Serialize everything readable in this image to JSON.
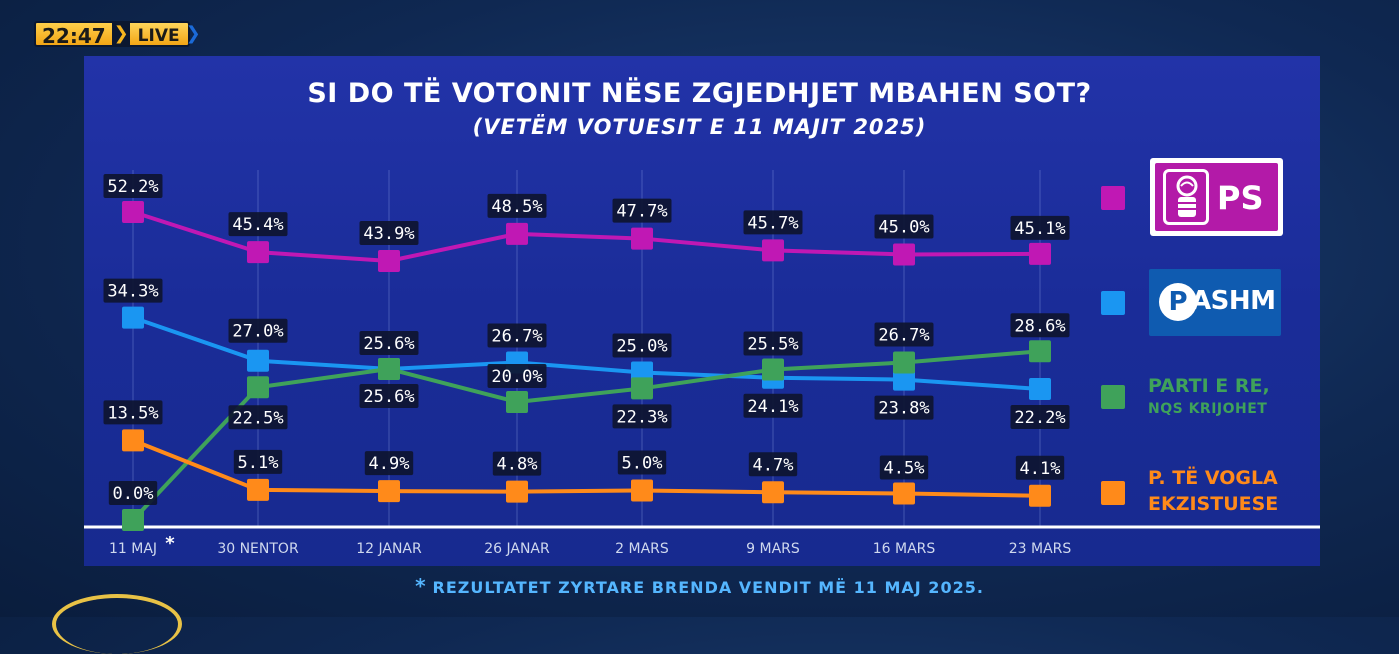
{
  "badge": {
    "time": "22:47",
    "live": "LIVE"
  },
  "header": {
    "title": "SI DO TË VOTONIT NËSE ZGJEDHJET MBAHEN SOT?",
    "subtitle": "(VETËM VOTUESIT E 11 MAJIT 2025)"
  },
  "colors": {
    "ps": "#c018b4",
    "pd": "#1a96f2",
    "new": "#3fa25a",
    "small": "#ff8a1a",
    "label_bg": "#0e1530"
  },
  "chart_data": {
    "type": "line",
    "title": "SI DO TË VOTONIT NËSE ZGJEDHJET MBAHEN SOT?",
    "subtitle": "(VETËM VOTUESIT E 11 MAJIT 2025)",
    "categories": [
      "11 MAJ",
      "30 NENTOR",
      "12 JANAR",
      "26 JANAR",
      "2 MARS",
      "9 MARS",
      "16 MARS",
      "23 MARS"
    ],
    "first_category_marker": "*",
    "ylim": [
      0,
      55
    ],
    "series": [
      {
        "key": "ps",
        "name": "PS",
        "values": [
          52.2,
          45.4,
          43.9,
          48.5,
          47.7,
          45.7,
          45.0,
          45.1
        ],
        "labels": [
          "52.2%",
          "45.4%",
          "43.9%",
          "48.5%",
          "47.7%",
          "45.7%",
          "45.0%",
          "45.1%"
        ]
      },
      {
        "key": "pd",
        "name": "PASHM",
        "values": [
          34.3,
          27.0,
          25.6,
          26.7,
          25.0,
          24.1,
          23.8,
          22.2
        ],
        "labels": [
          "34.3%",
          "27.0%",
          "25.6%",
          "26.7%",
          "25.0%",
          "24.1%",
          "23.8%",
          "22.2%"
        ]
      },
      {
        "key": "new",
        "name": "PARTI E RE, NQS KRIJOHET",
        "values": [
          0.0,
          22.5,
          25.6,
          20.0,
          22.3,
          25.5,
          26.7,
          28.6
        ],
        "labels": [
          "0.0%",
          "22.5%",
          "25.6%",
          "20.0%",
          "22.3%",
          "25.5%",
          "26.7%",
          "28.6%"
        ]
      },
      {
        "key": "small",
        "name": "P. TË VOGLA EKZISTUESE",
        "values": [
          13.5,
          5.1,
          4.9,
          4.8,
          5.0,
          4.7,
          4.5,
          4.1
        ],
        "labels": [
          "13.5%",
          "5.1%",
          "4.9%",
          "4.8%",
          "5.0%",
          "4.7%",
          "4.5%",
          "4.1%"
        ]
      }
    ]
  },
  "legend": {
    "ps_logo_text": "PS",
    "pd_logo_text": "ASHM",
    "pd_logo_initial": "P",
    "new_line1": "PARTI E RE,",
    "new_line2": "NQS KRIJOHET",
    "small_line1": "P. TË VOGLA",
    "small_line2": "EKZISTUESE"
  },
  "footnote": {
    "star": "*",
    "text": "REZULTATET ZYRTARE BRENDA VENDIT MË 11 MAJ 2025."
  }
}
